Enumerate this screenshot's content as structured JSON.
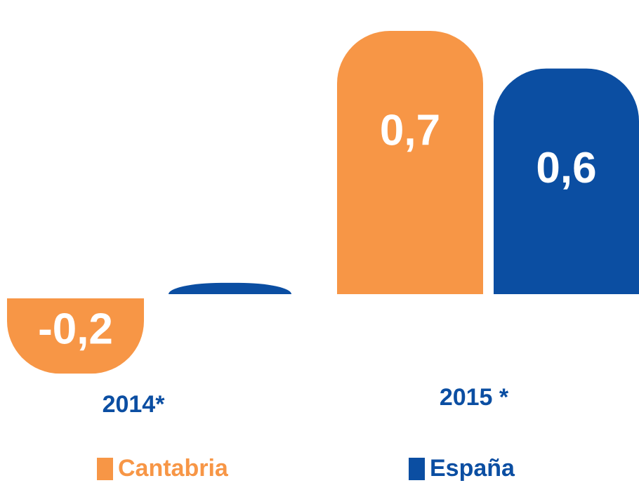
{
  "chart_data": {
    "type": "bar",
    "categories": [
      "2014*",
      "2015 *"
    ],
    "series": [
      {
        "name": "Cantabria",
        "color": "#f79646",
        "values": [
          -0.2,
          0.7
        ],
        "value_labels": [
          "-0,2",
          "0,7"
        ]
      },
      {
        "name": "España",
        "color": "#0b4ea2",
        "values": [
          0.03,
          0.6
        ],
        "value_labels": [
          null,
          "0,6"
        ]
      }
    ]
  }
}
